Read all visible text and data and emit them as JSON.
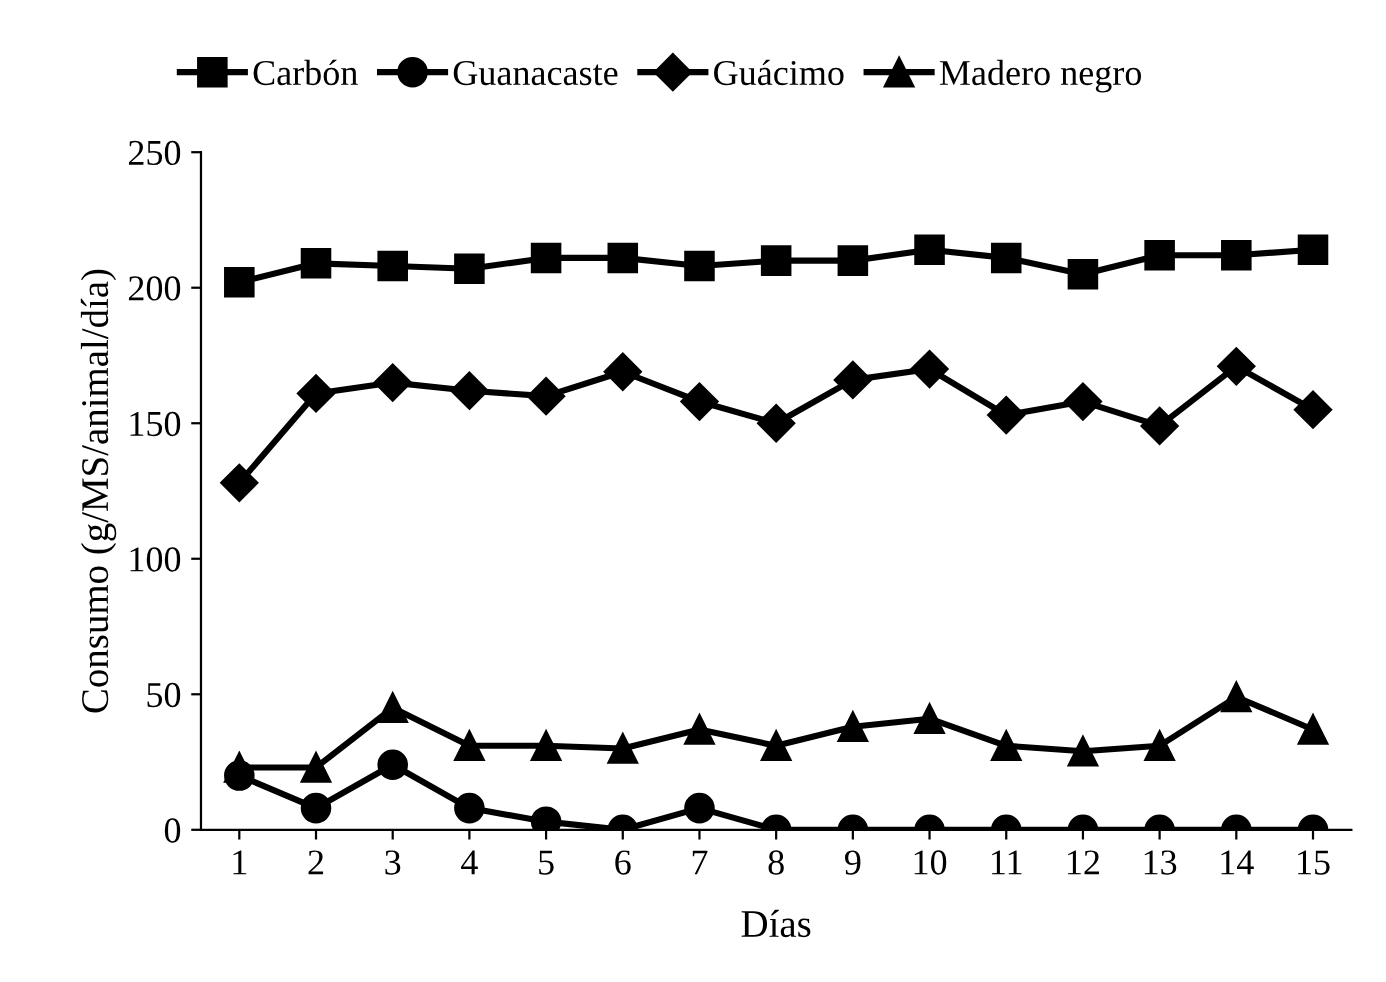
{
  "chart_data": {
    "type": "line",
    "xlabel": "Días",
    "ylabel": "Consumo (g/MS/animal/día)",
    "categories": [
      "1",
      "2",
      "3",
      "4",
      "5",
      "6",
      "7",
      "8",
      "9",
      "10",
      "11",
      "12",
      "13",
      "14",
      "15"
    ],
    "series": [
      {
        "name": "Carbón",
        "color": "#000000",
        "marker": "square",
        "values": [
          202,
          209,
          208,
          207,
          211,
          211,
          208,
          210,
          210,
          214,
          211,
          205,
          212,
          212,
          214
        ]
      },
      {
        "name": "Guanacaste",
        "color": "#000000",
        "marker": "circle",
        "values": [
          20,
          8,
          24,
          8,
          3,
          0,
          8,
          0,
          0,
          0,
          0,
          0,
          0,
          0,
          0
        ]
      },
      {
        "name": "Guácimo",
        "color": "#000000",
        "marker": "diamond",
        "values": [
          128,
          161,
          165,
          162,
          160,
          169,
          158,
          150,
          166,
          170,
          153,
          158,
          149,
          171,
          155
        ]
      },
      {
        "name": "Madero negro",
        "color": "#000000",
        "marker": "triangle",
        "values": [
          23,
          23,
          45,
          31,
          31,
          30,
          37,
          31,
          38,
          41,
          31,
          29,
          31,
          49,
          37
        ]
      }
    ],
    "ylim": [
      0,
      250
    ],
    "yticks": [
      0,
      50,
      100,
      150,
      200,
      250
    ],
    "grid": false,
    "legend": "top",
    "line_style": "solid"
  }
}
